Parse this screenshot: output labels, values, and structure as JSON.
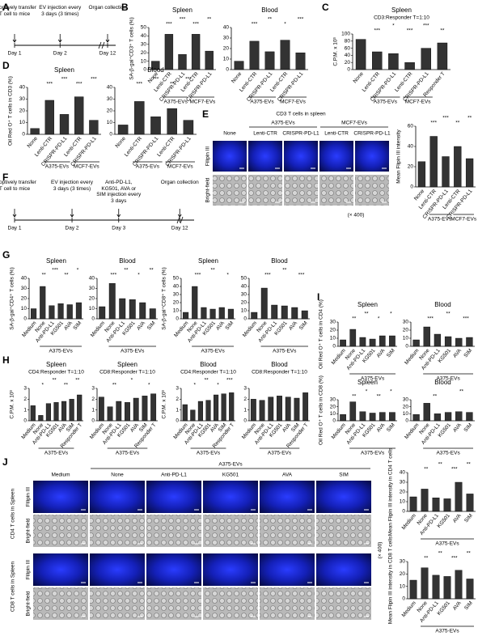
{
  "figure": {
    "panel_labels": [
      "A",
      "B",
      "C",
      "D",
      "E",
      "F",
      "G",
      "H",
      "I",
      "J"
    ],
    "schematic_a": {
      "steps": [
        "Adoptively transfer T cell to mice",
        "EV injection every 3 days (3 times)",
        "Organ collection"
      ],
      "days": [
        "Day 1",
        "Day 2",
        "Day 12"
      ]
    },
    "schematic_f": {
      "steps": [
        "Adoptively transfer T cell to mice",
        "EV injection every 3 days (3 times)",
        "Anti-PD-L1, KG501, AVA or SIM injection every 3 days",
        "Organ collection"
      ],
      "days": [
        "Day 1",
        "Day 2",
        "Day 3",
        "Day 12"
      ]
    },
    "images_e": {
      "title": "CD3 T cells in spleen",
      "groups": [
        "A375-EVs",
        "MCF7-EVs"
      ],
      "columns": [
        "None",
        "Lenti-CTR",
        "CRISPR-PD-L1",
        "Lenti-CTR",
        "CRISPR-PD-L1"
      ],
      "rows": [
        "Filipin III",
        "Bright-field"
      ],
      "magnification": "(× 400)"
    },
    "images_j": {
      "group": "A375-EVs",
      "columns": [
        "Medium",
        "None",
        "Anti-PD-L1",
        "KG501",
        "AVA",
        "SIM"
      ],
      "rows": [
        "Filipin III",
        "Bright-field",
        "Filipin III",
        "Bright-field"
      ],
      "sections": [
        "CD4 T cells in Spleen",
        "CD8 T cells in Spleen"
      ],
      "magnification": "(× 400)"
    }
  },
  "chart_data": [
    {
      "type": "bar",
      "title": "Spleen",
      "ylabel": "SA-β-gal⁺CD3⁺ T cells (%)",
      "categories": [
        "None",
        "Lenti-CTR",
        "CRISPR-PD-L1",
        "Lenti-CTR",
        "CRISPR-PD-L1"
      ],
      "values": [
        10,
        42,
        18,
        42,
        22
      ],
      "ylim": [
        0,
        50
      ],
      "yticks": [
        0,
        10,
        20,
        30,
        40,
        50
      ],
      "groups": [
        "A375-EVs",
        "MCF7-EVs"
      ],
      "significance": [
        "***",
        "***",
        "***",
        "**"
      ],
      "color": "#333333"
    },
    {
      "type": "bar",
      "title": "Blood",
      "categories": [
        "None",
        "Lenti-CTR",
        "CRISPR-PD-L1",
        "Lenti-CTR",
        "CRISPR-PD-L1"
      ],
      "values": [
        8,
        27,
        17,
        28,
        16
      ],
      "ylim": [
        0,
        40
      ],
      "yticks": [
        0,
        10,
        20,
        30,
        40
      ],
      "groups": [
        "A375-EVs",
        "MCF7-EVs"
      ],
      "significance": [
        "***",
        "**",
        "*",
        "***"
      ],
      "color": "#333333"
    },
    {
      "type": "bar",
      "title": "Spleen",
      "subtitle": "CD3:Responder T=1:10",
      "ylabel": "C.P.M. x 10³",
      "categories": [
        "None",
        "Lenti-CTR",
        "CRISPR-PD-L1",
        "Lenti-CTR",
        "CRISPR-PD-L1",
        "Responder T"
      ],
      "values": [
        85,
        50,
        45,
        20,
        60,
        75
      ],
      "ylim": [
        0,
        100
      ],
      "yticks": [
        0,
        20,
        40,
        60,
        80,
        100
      ],
      "groups": [
        "A375-EVs",
        "MCF7-EVs"
      ],
      "significance": [
        "***",
        "*",
        "***",
        "***",
        "**"
      ],
      "color": "#333333"
    },
    {
      "type": "bar",
      "title": "Spleen",
      "ylabel": "Oil Red O⁺ T cells in CD3 (%)",
      "categories": [
        "None",
        "Lenti-CTR",
        "CRISPR-PD-L1",
        "Lenti-CTR",
        "CRISPR-PD-L1"
      ],
      "values": [
        5,
        29,
        17,
        32,
        12
      ],
      "ylim": [
        0,
        40
      ],
      "yticks": [
        0,
        10,
        20,
        30,
        40
      ],
      "groups": [
        "A375-EVs",
        "MCF7-EVs"
      ],
      "significance": [
        "***",
        "***",
        "***",
        "***"
      ],
      "color": "#333333"
    },
    {
      "type": "bar",
      "title": "Blood",
      "categories": [
        "None",
        "Lenti-CTR",
        "CRISPR-PD-L1",
        "Lenti-CTR",
        "CRISPR-PD-L1"
      ],
      "values": [
        8,
        28,
        15,
        22,
        12
      ],
      "ylim": [
        0,
        40
      ],
      "yticks": [
        0,
        10,
        20,
        30,
        40
      ],
      "groups": [
        "A375-EVs",
        "MCF7-EVs"
      ],
      "significance": [
        "***",
        "***",
        "**",
        "***"
      ],
      "color": "#333333"
    },
    {
      "type": "bar",
      "ylabel": "Mean Flipin III intensity",
      "categories": [
        "None",
        "Lenti-CTR",
        "CRISPR-PD-L1",
        "Lenti-CTR",
        "CRISPR-PD-L1"
      ],
      "values": [
        25,
        50,
        30,
        40,
        28
      ],
      "ylim": [
        0,
        60
      ],
      "yticks": [
        0,
        20,
        40,
        60
      ],
      "groups": [
        "A375-EVs",
        "MCF7-EVs"
      ],
      "significance": [
        "***",
        "***",
        "**",
        "**"
      ],
      "color": "#333333"
    },
    {
      "type": "bar",
      "title": "Spleen",
      "ylabel": "SA-β-gal⁺CD4⁺ T cells (%)",
      "categories": [
        "Medium",
        "None",
        "Anti-PD-L1",
        "KG501",
        "AVA",
        "SIM"
      ],
      "values": [
        10,
        32,
        13,
        15,
        14,
        16
      ],
      "ylim": [
        0,
        40
      ],
      "yticks": [
        0,
        10,
        20,
        30,
        40
      ],
      "groups": [
        "A375-EVs"
      ],
      "significance": [
        "**",
        "***",
        "**",
        "*"
      ],
      "color": "#333333"
    },
    {
      "type": "bar",
      "title": "Blood",
      "categories": [
        "Medium",
        "None",
        "Anti-PD-L1",
        "KG501",
        "AVA",
        "SIM"
      ],
      "values": [
        12,
        35,
        20,
        19,
        16,
        10
      ],
      "ylim": [
        0,
        40
      ],
      "yticks": [
        0,
        10,
        20,
        30,
        40
      ],
      "groups": [
        "A375-EVs"
      ],
      "significance": [
        "***",
        "**",
        "*",
        "**"
      ],
      "color": "#333333"
    },
    {
      "type": "bar",
      "title": "Spleen",
      "ylabel": "SA-β-gal⁺CD8⁺ T cells (%)",
      "categories": [
        "Medium",
        "None",
        "Anti-PD-L1",
        "KG501",
        "AVA",
        "SIM"
      ],
      "values": [
        8,
        40,
        14,
        12,
        14,
        12
      ],
      "ylim": [
        0,
        50
      ],
      "yticks": [
        0,
        10,
        20,
        30,
        40,
        50
      ],
      "groups": [
        "A375-EVs"
      ],
      "significance": [
        "***",
        "**",
        "*"
      ],
      "color": "#333333"
    },
    {
      "type": "bar",
      "title": "Blood",
      "categories": [
        "Medium",
        "None",
        "Anti-PD-L1",
        "KG501",
        "AVA",
        "SIM"
      ],
      "values": [
        8,
        38,
        17,
        16,
        14,
        10
      ],
      "ylim": [
        0,
        50
      ],
      "yticks": [
        0,
        10,
        20,
        30,
        40,
        50
      ],
      "groups": [
        "A375-EVs"
      ],
      "significance": [
        "***",
        "**",
        "***"
      ],
      "color": "#333333"
    },
    {
      "type": "bar",
      "title": "Spleen",
      "subtitle": "CD4:Responder T=1:10",
      "ylabel": "C.P.M. x 10³",
      "categories": [
        "Medium",
        "None",
        "Anti-PD-L1",
        "KG501",
        "AVA",
        "SIM",
        "Responder T"
      ],
      "values": [
        1.4,
        0.5,
        1.6,
        1.7,
        1.8,
        2.0,
        2.4
      ],
      "ylim": [
        0,
        3
      ],
      "yticks": [
        0,
        1,
        2,
        3
      ],
      "groups": [
        "A375-EVs"
      ],
      "significance": [
        "*",
        "**",
        "**",
        "**"
      ],
      "color": "#333333"
    },
    {
      "type": "bar",
      "title": "Spleen",
      "subtitle": "CD8:Responder T=1:10",
      "categories": [
        "Medium",
        "None",
        "Anti-PD-L1",
        "KG501",
        "AVA",
        "SIM",
        "Responder T"
      ],
      "values": [
        2.2,
        1.3,
        1.8,
        1.7,
        2.1,
        2.3,
        2.5
      ],
      "ylim": [
        0,
        3
      ],
      "yticks": [
        0,
        1,
        2,
        3
      ],
      "groups": [
        "A375-EVs"
      ],
      "significance": [
        "**",
        "*",
        "*"
      ],
      "color": "#333333"
    },
    {
      "type": "bar",
      "title": "Blood",
      "subtitle": "CD4:Responder T=1:10",
      "ylabel": "C.P.M. x 10³",
      "categories": [
        "Medium",
        "None",
        "Anti-PD-L1",
        "KG501",
        "AVA",
        "SIM",
        "Responder T"
      ],
      "values": [
        1.5,
        1.0,
        1.8,
        1.9,
        2.4,
        2.5,
        2.6
      ],
      "ylim": [
        0,
        3
      ],
      "yticks": [
        0,
        1,
        2,
        3
      ],
      "groups": [
        "A375-EVs"
      ],
      "significance": [
        "*",
        "**",
        "*",
        "***"
      ],
      "color": "#333333"
    },
    {
      "type": "bar",
      "title": "Blood",
      "subtitle": "CD8:Responder T=1:10",
      "categories": [
        "Medium",
        "None",
        "Anti-PD-L1",
        "KG501",
        "AVA",
        "SIM",
        "Responder T"
      ],
      "values": [
        2.0,
        1.9,
        2.2,
        2.3,
        2.2,
        2.1,
        2.6
      ],
      "ylim": [
        0,
        3
      ],
      "yticks": [
        0,
        1,
        2,
        3
      ],
      "groups": [
        "A375-EVs"
      ],
      "significance": [],
      "color": "#333333"
    },
    {
      "type": "bar",
      "title": "Spleen",
      "ylabel": "Oil Red O⁺ T cells in CD4 (%)",
      "categories": [
        "Medium",
        "None",
        "Anti-PD-L1",
        "KG501",
        "AVA",
        "SIM"
      ],
      "values": [
        8,
        21,
        11,
        9,
        13,
        13
      ],
      "ylim": [
        0,
        30
      ],
      "yticks": [
        0,
        10,
        20,
        30
      ],
      "groups": [
        "A375-EVs"
      ],
      "significance": [
        "**",
        "**",
        "*",
        "*"
      ],
      "color": "#333333"
    },
    {
      "type": "bar",
      "title": "Blood",
      "categories": [
        "Medium",
        "None",
        "Anti-PD-L1",
        "KG501",
        "AVA",
        "SIM"
      ],
      "values": [
        8,
        24,
        15,
        12,
        10,
        11
      ],
      "ylim": [
        0,
        30
      ],
      "yticks": [
        0,
        10,
        20,
        30
      ],
      "groups": [
        "A375-EVs"
      ],
      "significance": [
        "***",
        "**",
        "***"
      ],
      "color": "#333333"
    },
    {
      "type": "bar",
      "title": "Spleen",
      "ylabel": "Oil Red O⁺ T cells in CD8 (%)",
      "categories": [
        "Medium",
        "None",
        "Anti-PD-L1",
        "KG501",
        "AVA",
        "SIM"
      ],
      "values": [
        9,
        27,
        13,
        11,
        12,
        12
      ],
      "ylim": [
        0,
        30
      ],
      "yticks": [
        0,
        10,
        20,
        30
      ],
      "groups": [
        "A375-EVs"
      ],
      "significance": [
        "**",
        "*",
        "**",
        "*"
      ],
      "color": "#333333"
    },
    {
      "type": "bar",
      "title": "Blood",
      "categories": [
        "Medium",
        "None",
        "Anti-PD-L1",
        "KG501",
        "AVA",
        "SIM"
      ],
      "values": [
        9,
        25,
        10,
        12,
        13,
        12
      ],
      "ylim": [
        0,
        30
      ],
      "yticks": [
        0,
        10,
        20,
        30
      ],
      "groups": [
        "A375-EVs"
      ],
      "significance": [
        "**",
        "**"
      ],
      "color": "#333333"
    },
    {
      "type": "bar",
      "ylabel": "Mean Flipin III intensity in CD4 T cells",
      "categories": [
        "Medium",
        "None",
        "Anti-PD-L1",
        "KG501",
        "AVA",
        "SIM"
      ],
      "values": [
        15,
        23,
        14,
        13,
        30,
        18
      ],
      "ylim": [
        0,
        40
      ],
      "yticks": [
        0,
        10,
        20,
        30,
        40
      ],
      "groups": [
        "A375-EVs"
      ],
      "significance": [
        "**",
        "**",
        "***",
        "**"
      ],
      "color": "#333333"
    },
    {
      "type": "bar",
      "ylabel": "Mean Flipin III intensity in CD8 T cells",
      "categories": [
        "Medium",
        "None",
        "Anti-PD-L1",
        "KG501",
        "AVA",
        "SIM"
      ],
      "values": [
        15,
        25,
        19,
        18,
        23,
        16
      ],
      "ylim": [
        0,
        30
      ],
      "yticks": [
        0,
        10,
        20,
        30
      ],
      "groups": [
        "A375-EVs"
      ],
      "significance": [
        "**",
        "**",
        "***",
        "**"
      ],
      "color": "#333333"
    }
  ]
}
